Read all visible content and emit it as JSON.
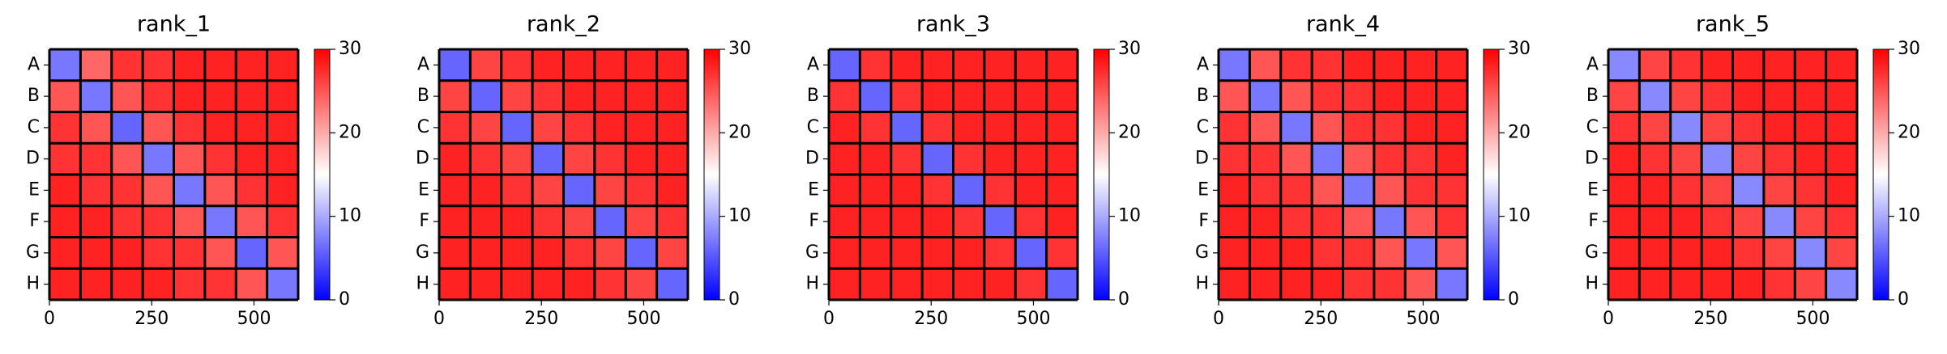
{
  "chart_data": [
    {
      "type": "heatmap",
      "title": "rank_1",
      "rows": [
        "A",
        "B",
        "C",
        "D",
        "E",
        "F",
        "G",
        "H"
      ],
      "xlim": [
        0,
        608
      ],
      "xticks": [
        0,
        250,
        500
      ],
      "zlim": [
        0,
        30
      ],
      "colorbar_ticks": [
        0,
        10,
        20,
        30
      ],
      "colormap": [
        "#0000ff",
        "#ffffff",
        "#ff0000"
      ],
      "z": [
        [
          7,
          24,
          27,
          27,
          28,
          28,
          28,
          28
        ],
        [
          25,
          7,
          25,
          27,
          28,
          28,
          28,
          28
        ],
        [
          27,
          25,
          6,
          25,
          27,
          28,
          28,
          28
        ],
        [
          27,
          27,
          25,
          7,
          25,
          27,
          28,
          28
        ],
        [
          28,
          27,
          27,
          25,
          7,
          25,
          27,
          28
        ],
        [
          28,
          28,
          27,
          27,
          25,
          7,
          25,
          27
        ],
        [
          28,
          28,
          28,
          27,
          27,
          25,
          6,
          25
        ],
        [
          28,
          28,
          28,
          28,
          27,
          27,
          25,
          7
        ]
      ]
    },
    {
      "type": "heatmap",
      "title": "rank_2",
      "rows": [
        "A",
        "B",
        "C",
        "D",
        "E",
        "F",
        "G",
        "H"
      ],
      "xlim": [
        0,
        608
      ],
      "xticks": [
        0,
        250,
        500
      ],
      "zlim": [
        0,
        30
      ],
      "colorbar_ticks": [
        0,
        10,
        20,
        30
      ],
      "colormap": [
        "#0000ff",
        "#ffffff",
        "#ff0000"
      ],
      "z": [
        [
          6,
          26,
          27,
          28,
          28,
          28,
          28,
          28
        ],
        [
          26,
          6,
          26,
          27,
          28,
          28,
          28,
          28
        ],
        [
          27,
          26,
          6,
          26,
          27,
          28,
          28,
          28
        ],
        [
          28,
          27,
          26,
          6,
          26,
          27,
          28,
          28
        ],
        [
          28,
          28,
          27,
          26,
          6,
          26,
          27,
          28
        ],
        [
          28,
          28,
          28,
          27,
          26,
          6,
          26,
          27
        ],
        [
          28,
          28,
          28,
          28,
          27,
          26,
          6,
          26
        ],
        [
          28,
          28,
          28,
          28,
          28,
          27,
          26,
          6
        ]
      ]
    },
    {
      "type": "heatmap",
      "title": "rank_3",
      "rows": [
        "A",
        "B",
        "C",
        "D",
        "E",
        "F",
        "G",
        "H"
      ],
      "xlim": [
        0,
        608
      ],
      "xticks": [
        0,
        250,
        500
      ],
      "zlim": [
        0,
        30
      ],
      "colorbar_ticks": [
        0,
        10,
        20,
        30
      ],
      "colormap": [
        "#0000ff",
        "#ffffff",
        "#ff0000"
      ],
      "z": [
        [
          6,
          27,
          28,
          28,
          28,
          28,
          28,
          28
        ],
        [
          27,
          6,
          27,
          28,
          28,
          28,
          28,
          28
        ],
        [
          28,
          27,
          6,
          27,
          28,
          28,
          28,
          28
        ],
        [
          28,
          28,
          27,
          6,
          27,
          28,
          28,
          28
        ],
        [
          28,
          28,
          28,
          27,
          6,
          27,
          28,
          28
        ],
        [
          28,
          28,
          28,
          28,
          27,
          6,
          27,
          28
        ],
        [
          28,
          28,
          28,
          28,
          28,
          27,
          6,
          27
        ],
        [
          28,
          28,
          28,
          28,
          28,
          28,
          27,
          6
        ]
      ]
    },
    {
      "type": "heatmap",
      "title": "rank_4",
      "rows": [
        "A",
        "B",
        "C",
        "D",
        "E",
        "F",
        "G",
        "H"
      ],
      "xlim": [
        0,
        608
      ],
      "xticks": [
        0,
        250,
        500
      ],
      "zlim": [
        0,
        30
      ],
      "colorbar_ticks": [
        0,
        10,
        20,
        30
      ],
      "colormap": [
        "#0000ff",
        "#ffffff",
        "#ff0000"
      ],
      "z": [
        [
          7,
          25,
          27,
          27,
          28,
          28,
          28,
          28
        ],
        [
          25,
          7,
          25,
          27,
          27,
          28,
          28,
          28
        ],
        [
          27,
          25,
          7,
          25,
          27,
          27,
          28,
          28
        ],
        [
          27,
          27,
          25,
          7,
          25,
          27,
          27,
          28
        ],
        [
          28,
          27,
          27,
          25,
          7,
          25,
          27,
          27
        ],
        [
          28,
          28,
          27,
          27,
          25,
          7,
          25,
          27
        ],
        [
          28,
          28,
          28,
          27,
          27,
          25,
          7,
          25
        ],
        [
          28,
          28,
          28,
          28,
          27,
          27,
          25,
          7
        ]
      ]
    },
    {
      "type": "heatmap",
      "title": "rank_5",
      "rows": [
        "A",
        "B",
        "C",
        "D",
        "E",
        "F",
        "G",
        "H"
      ],
      "xlim": [
        0,
        608
      ],
      "xticks": [
        0,
        250,
        500
      ],
      "zlim": [
        0,
        30
      ],
      "colorbar_ticks": [
        0,
        10,
        20,
        30
      ],
      "colormap": [
        "#0000ff",
        "#ffffff",
        "#ff0000"
      ],
      "z": [
        [
          8,
          26,
          27,
          28,
          28,
          28,
          28,
          28
        ],
        [
          26,
          8,
          26,
          27,
          28,
          28,
          28,
          28
        ],
        [
          27,
          26,
          8,
          26,
          27,
          28,
          28,
          28
        ],
        [
          28,
          27,
          26,
          8,
          26,
          27,
          28,
          28
        ],
        [
          28,
          28,
          27,
          26,
          8,
          26,
          27,
          28
        ],
        [
          28,
          28,
          28,
          27,
          26,
          8,
          26,
          27
        ],
        [
          28,
          28,
          28,
          28,
          27,
          26,
          8,
          26
        ],
        [
          28,
          28,
          28,
          28,
          28,
          27,
          26,
          8
        ]
      ]
    }
  ]
}
